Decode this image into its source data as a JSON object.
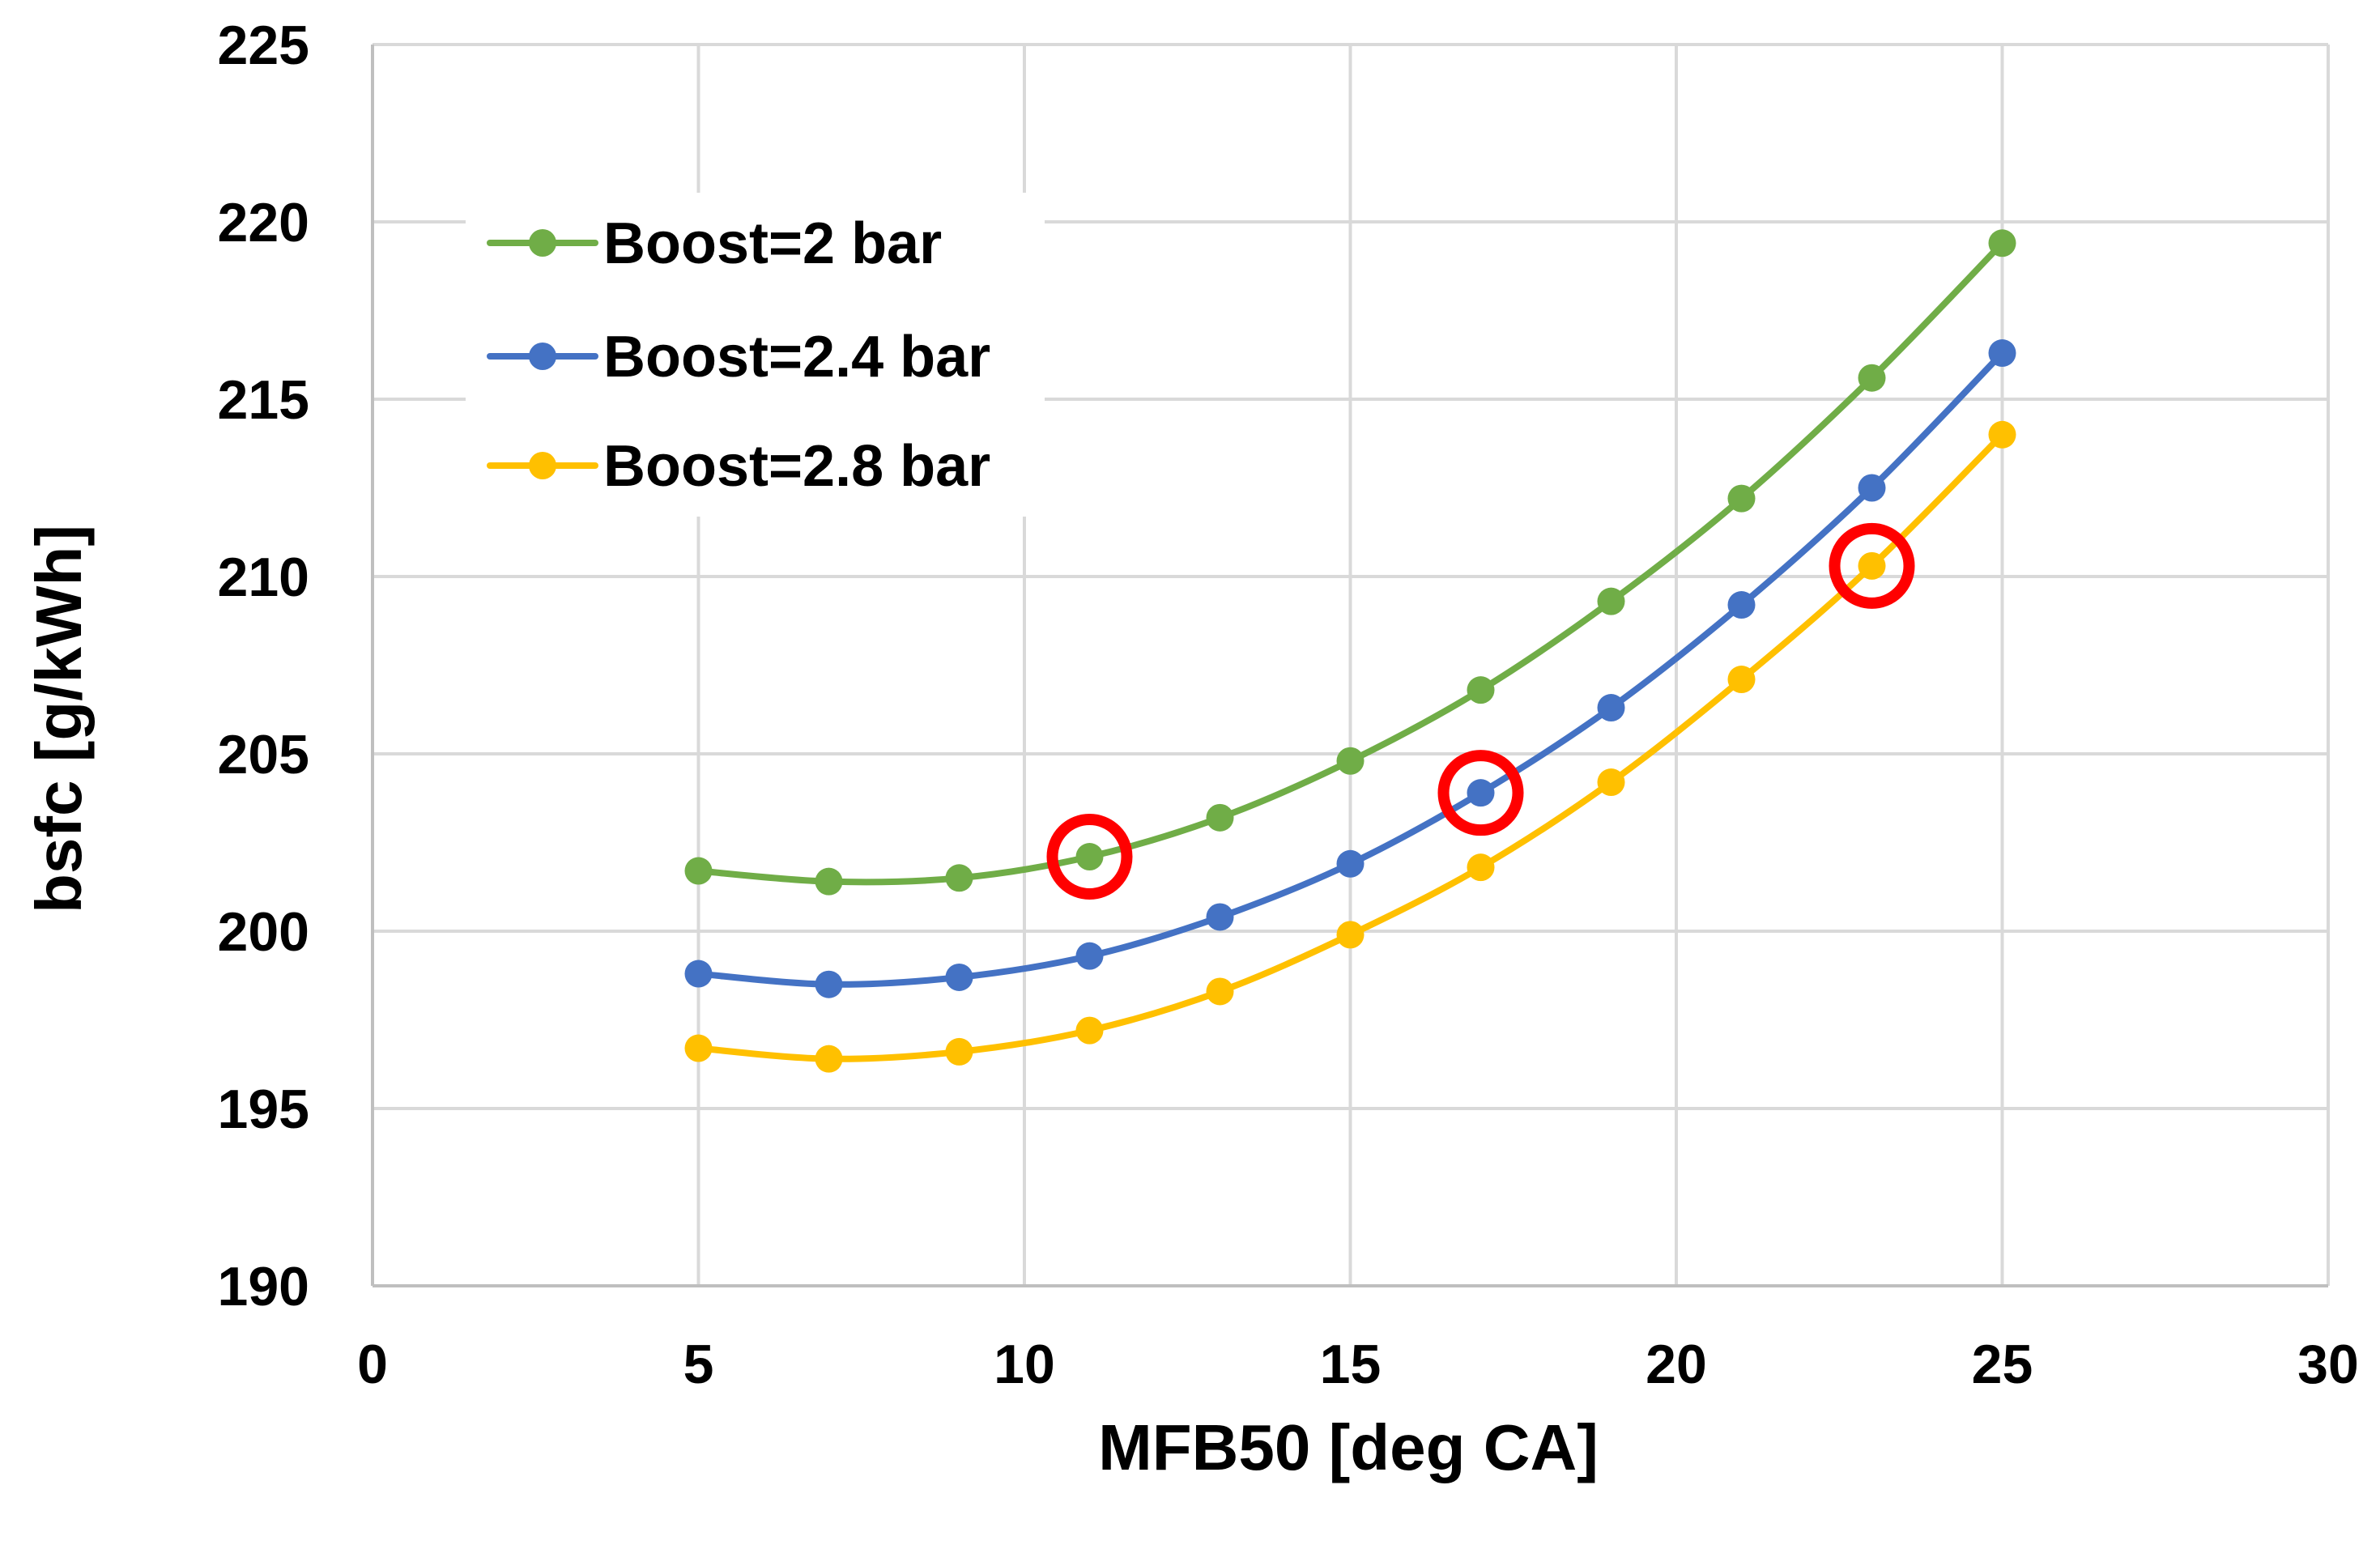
{
  "chart_data": {
    "type": "line",
    "title": "",
    "xlabel": "MFB50 [deg CA]",
    "ylabel": "bsfc [g/kWh]",
    "xlim": [
      0,
      30
    ],
    "ylim": [
      190,
      225
    ],
    "xticks": [
      0,
      5,
      10,
      15,
      20,
      25,
      30
    ],
    "yticks": [
      190,
      195,
      200,
      205,
      210,
      215,
      220,
      225
    ],
    "grid": true,
    "legend_position": "top-left",
    "x": [
      5,
      7,
      9,
      11,
      13,
      15,
      17,
      19,
      21,
      23,
      25
    ],
    "series": [
      {
        "name": "Boost=2 bar",
        "color": "#70ad47",
        "values": [
          201.7,
          201.4,
          201.5,
          202.1,
          203.2,
          204.8,
          206.8,
          209.3,
          212.2,
          215.6,
          219.4
        ]
      },
      {
        "name": "Boost=2.4 bar",
        "color": "#4472c4",
        "values": [
          198.8,
          198.5,
          198.7,
          199.3,
          200.4,
          201.9,
          203.9,
          206.3,
          209.2,
          212.5,
          216.3
        ]
      },
      {
        "name": "Boost=2.8 bar",
        "color": "#ffc000",
        "values": [
          196.7,
          196.4,
          196.6,
          197.2,
          198.3,
          199.9,
          201.8,
          204.2,
          207.1,
          210.3,
          214.0
        ]
      }
    ],
    "highlights": [
      {
        "series": "Boost=2 bar",
        "x": 11,
        "y": 202.1,
        "color": "#ff0000"
      },
      {
        "series": "Boost=2.4 bar",
        "x": 17,
        "y": 203.9,
        "color": "#ff0000"
      },
      {
        "series": "Boost=2.8 bar",
        "x": 23,
        "y": 210.3,
        "color": "#ff0000"
      }
    ]
  }
}
